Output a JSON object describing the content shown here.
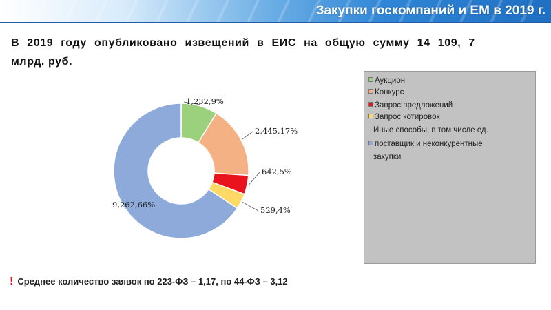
{
  "header": {
    "title": "Закупки госкомпаний и ЕМ в 2019 г."
  },
  "headline": {
    "line1": "В 2019 году опубликовано извещений в ЕИС на общую сумму 14 109, 7",
    "line2": "млрд. руб."
  },
  "chart_data": {
    "type": "pie",
    "style": "donut",
    "title": "",
    "categories": [
      "Аукцион",
      "Конкурс",
      "Запрос предложений",
      "Запрос котировок",
      "Иные способы, в том числе ед. поставщик и неконкурентные закупки"
    ],
    "values": [
      1232,
      2445,
      642,
      529,
      9262
    ],
    "data_labels": [
      "1,232,9%",
      "2,445,17%",
      "642,5%",
      "529,4%",
      "9,262,66%"
    ],
    "colors": [
      "#9bd07c",
      "#f4b183",
      "#e8131c",
      "#ffd966",
      "#8eaadb"
    ],
    "legend": {
      "placement": "right",
      "entries": [
        {
          "text": "Аукцион",
          "color": "#9bd07c"
        },
        {
          "text": "Конкурс",
          "color": "#f4b183"
        },
        {
          "text": "Запрос предложений",
          "color": "#e8131c"
        },
        {
          "text": "Запрос котировок",
          "color": "#ffd966"
        },
        {
          "text": "Иные способы, в том числе ед.",
          "color": null
        },
        {
          "text": "поставщик и неконкурентные",
          "color": "#8eaadb"
        },
        {
          "text": "закупки",
          "color": null
        }
      ]
    }
  },
  "note": {
    "mark": "!",
    "text": "Среднее количество заявок по 223-ФЗ – 1,17, по 44-ФЗ – 3,12"
  }
}
